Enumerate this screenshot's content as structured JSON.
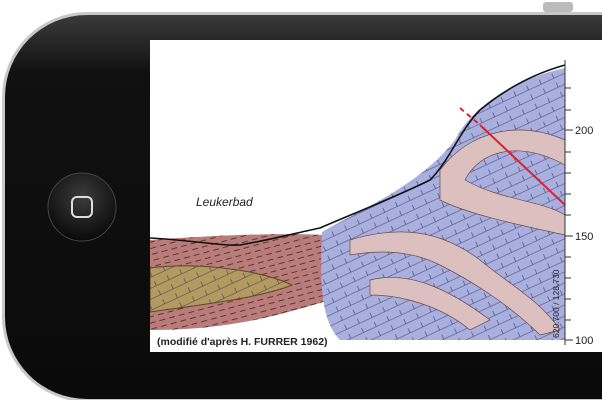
{
  "place_label": "Leukerbad",
  "credit": "(modifié d'après H. FURRER 1962)",
  "coordinates": "620.700 / 128.730",
  "scale_labels": [
    "200",
    "150",
    "100"
  ]
}
